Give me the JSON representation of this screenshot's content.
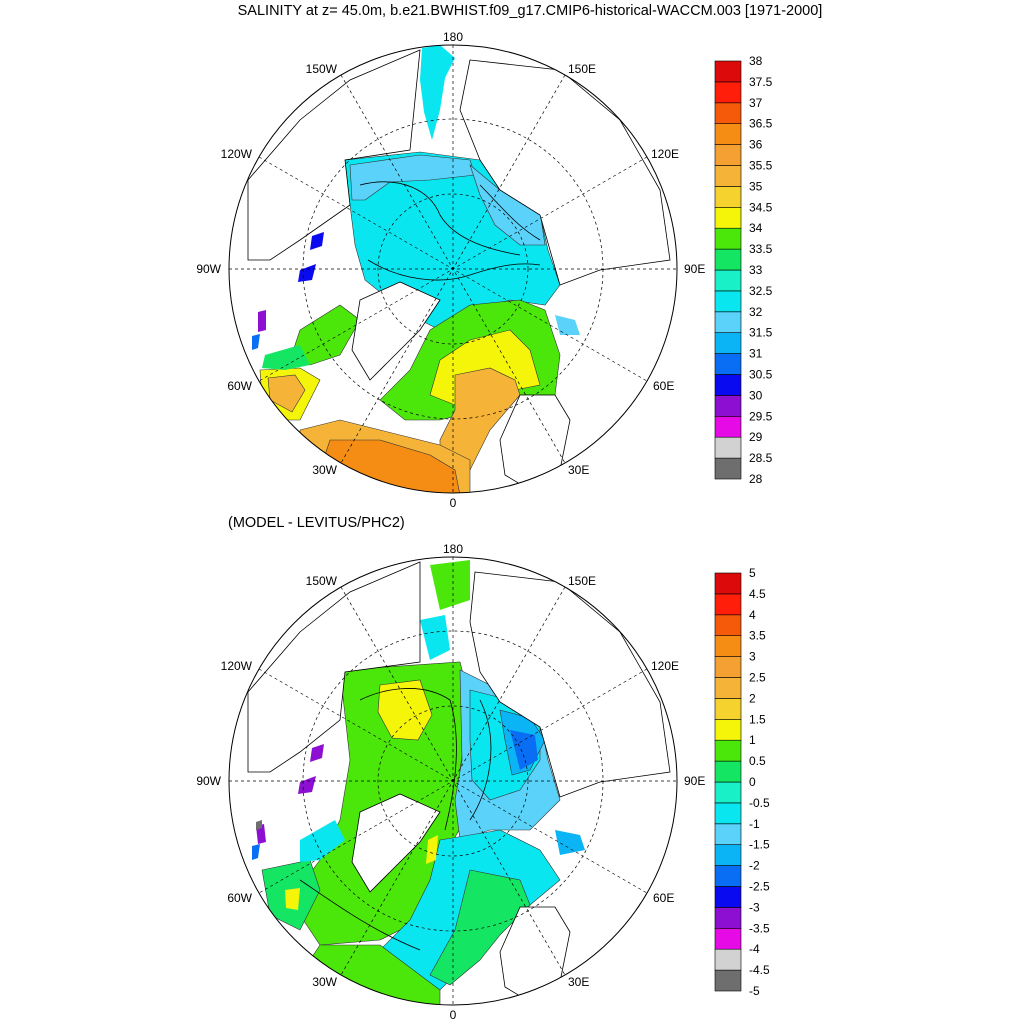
{
  "title": "SALINITY at z=  45.0m, b.e21.BWHIST.f09_g17.CMIP6-historical-WACCM.003 [1971-2000]",
  "subtitle": "(MODEL - LEVITUS/PHC2)",
  "maps": [
    {
      "id": "salinity",
      "lon_labels": [
        "180",
        "150E",
        "120E",
        "90E",
        "60E",
        "30E",
        "0",
        "30W",
        "60W",
        "90W",
        "120W",
        "150W"
      ],
      "colorbar": {
        "levels": [
          "28",
          "28.5",
          "29",
          "29.5",
          "30",
          "30.5",
          "31",
          "31.5",
          "32",
          "32.5",
          "33",
          "33.5",
          "34",
          "34.5",
          "35",
          "35.5",
          "36",
          "36.5",
          "37",
          "37.5",
          "38"
        ],
        "colors": [
          "#6e6e6e",
          "#d2d2d2",
          "#e60ae6",
          "#8c0fd2",
          "#0a0af0",
          "#0a6ef5",
          "#0ab4f5",
          "#5ad2fa",
          "#0ae6f0",
          "#19f0c8",
          "#14e664",
          "#4be60a",
          "#f5f50a",
          "#f5d22d",
          "#f5b437",
          "#f5a032",
          "#f58c14",
          "#f55a0a",
          "#ff1e0a",
          "#dc0a0a"
        ]
      }
    },
    {
      "id": "difference",
      "lon_labels": [
        "180",
        "150E",
        "120E",
        "90E",
        "60E",
        "30E",
        "0",
        "30W",
        "60W",
        "90W",
        "120W",
        "150W"
      ],
      "colorbar": {
        "levels": [
          "-5",
          "-4.5",
          "-4",
          "-3.5",
          "-3",
          "-2.5",
          "-2",
          "-1.5",
          "-1",
          "-0.5",
          "0",
          "0.5",
          "1",
          "1.5",
          "2",
          "2.5",
          "3",
          "3.5",
          "4",
          "4.5",
          "5"
        ],
        "colors": [
          "#6e6e6e",
          "#d2d2d2",
          "#e60ae6",
          "#8c0fd2",
          "#0a0af0",
          "#0a6ef5",
          "#0ab4f5",
          "#5ad2fa",
          "#0ae6f0",
          "#19f0c8",
          "#14e664",
          "#4be60a",
          "#f5f50a",
          "#f5d22d",
          "#f5b437",
          "#f5a032",
          "#f58c14",
          "#f55a0a",
          "#ff1e0a",
          "#dc0a0a"
        ]
      }
    }
  ]
}
